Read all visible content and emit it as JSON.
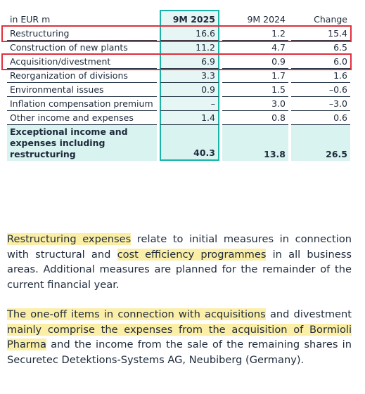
{
  "table": {
    "header": [
      "in EUR m",
      "9M 2025",
      "9M 2024",
      "Change"
    ],
    "rows": [
      {
        "cells": [
          "Restructuring",
          "16.6",
          "1.2",
          "15.4"
        ],
        "boxed": true
      },
      {
        "cells": [
          "Construction of new plants",
          "11.2",
          "4.7",
          "6.5"
        ],
        "boxed": false
      },
      {
        "cells": [
          "Acquisition/divestment",
          "6.9",
          "0.9",
          "6.0"
        ],
        "boxed": true
      },
      {
        "cells": [
          "Reorganization of divisions",
          "3.3",
          "1.7",
          "1.6"
        ],
        "boxed": false
      },
      {
        "cells": [
          "Environmental issues",
          "0.9",
          "1.5",
          "–0.6"
        ],
        "boxed": false
      },
      {
        "cells": [
          "Inflation compensation premium",
          "–",
          "3.0",
          "–3.0"
        ],
        "boxed": false
      },
      {
        "cells": [
          "Other income and expenses",
          "1.4",
          "0.8",
          "0.6"
        ],
        "boxed": false
      }
    ],
    "total": [
      "Exceptional income and expenses including restructuring",
      "40.3",
      "13.8",
      "26.5"
    ]
  },
  "paragraphs": [
    [
      {
        "text": "Restructuring expenses",
        "highlight": true
      },
      {
        "text": " relate to initial measures in connection with structural and ",
        "highlight": false
      },
      {
        "text": "cost efficiency programmes",
        "highlight": true
      },
      {
        "text": " in all business areas. Additional measures are planned for the remainder of the current financial year.",
        "highlight": false
      }
    ],
    [
      {
        "text": "The one-off items in connection with acquisitions",
        "highlight": true
      },
      {
        "text": " and divestment ",
        "highlight": false
      },
      {
        "text": "mainly comprise the expenses from the acquisition of Bormioli Pharma",
        "highlight": true
      },
      {
        "text": " and the income from the sale of the remaining shares in Securetec Detektions-Systems AG, Neubiberg (Germany).",
        "highlight": false
      }
    ]
  ]
}
